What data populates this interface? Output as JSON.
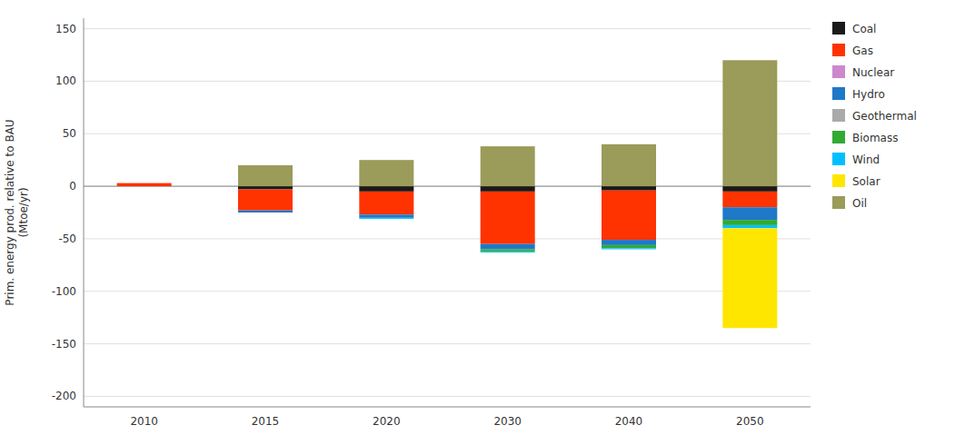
{
  "chart_data": {
    "type": "bar",
    "stacked": true,
    "categories": [
      "2010",
      "2015",
      "2020",
      "2030",
      "2040",
      "2050"
    ],
    "series": [
      {
        "name": "Coal",
        "color": "#1A1A1A",
        "values": [
          0,
          -3,
          -5,
          -5,
          -4,
          -5
        ]
      },
      {
        "name": "Gas",
        "color": "#FF3300",
        "values": [
          3,
          -20,
          -22,
          -50,
          -47,
          -15
        ]
      },
      {
        "name": "Nuclear",
        "color": "#CC88CC",
        "values": [
          0,
          0,
          0,
          0,
          0,
          0
        ]
      },
      {
        "name": "Hydro",
        "color": "#1F78C8",
        "values": [
          0,
          -2,
          -3,
          -5,
          -5,
          -12
        ]
      },
      {
        "name": "Geothermal",
        "color": "#AAAAAA",
        "values": [
          0,
          0,
          0,
          0,
          0,
          0
        ]
      },
      {
        "name": "Biomass",
        "color": "#33AA33",
        "values": [
          0,
          0,
          0,
          -2,
          -3,
          -5
        ]
      },
      {
        "name": "Wind",
        "color": "#00BFFF",
        "values": [
          0,
          0,
          -1,
          -1,
          -1,
          -3
        ]
      },
      {
        "name": "Solar",
        "color": "#FFE600",
        "values": [
          0,
          0,
          0,
          0,
          0,
          -95
        ]
      },
      {
        "name": "Oil",
        "color": "#9B9B5A",
        "values": [
          0,
          20,
          25,
          38,
          40,
          120
        ]
      }
    ],
    "ylabel": "Prim. energy prod. relative to BAU\n(Mtoe/yr)",
    "ylim": [
      -210,
      160
    ],
    "yticks": [
      -200,
      -150,
      -100,
      -50,
      0,
      50,
      100,
      150
    ],
    "grid": true,
    "legend": "right"
  }
}
